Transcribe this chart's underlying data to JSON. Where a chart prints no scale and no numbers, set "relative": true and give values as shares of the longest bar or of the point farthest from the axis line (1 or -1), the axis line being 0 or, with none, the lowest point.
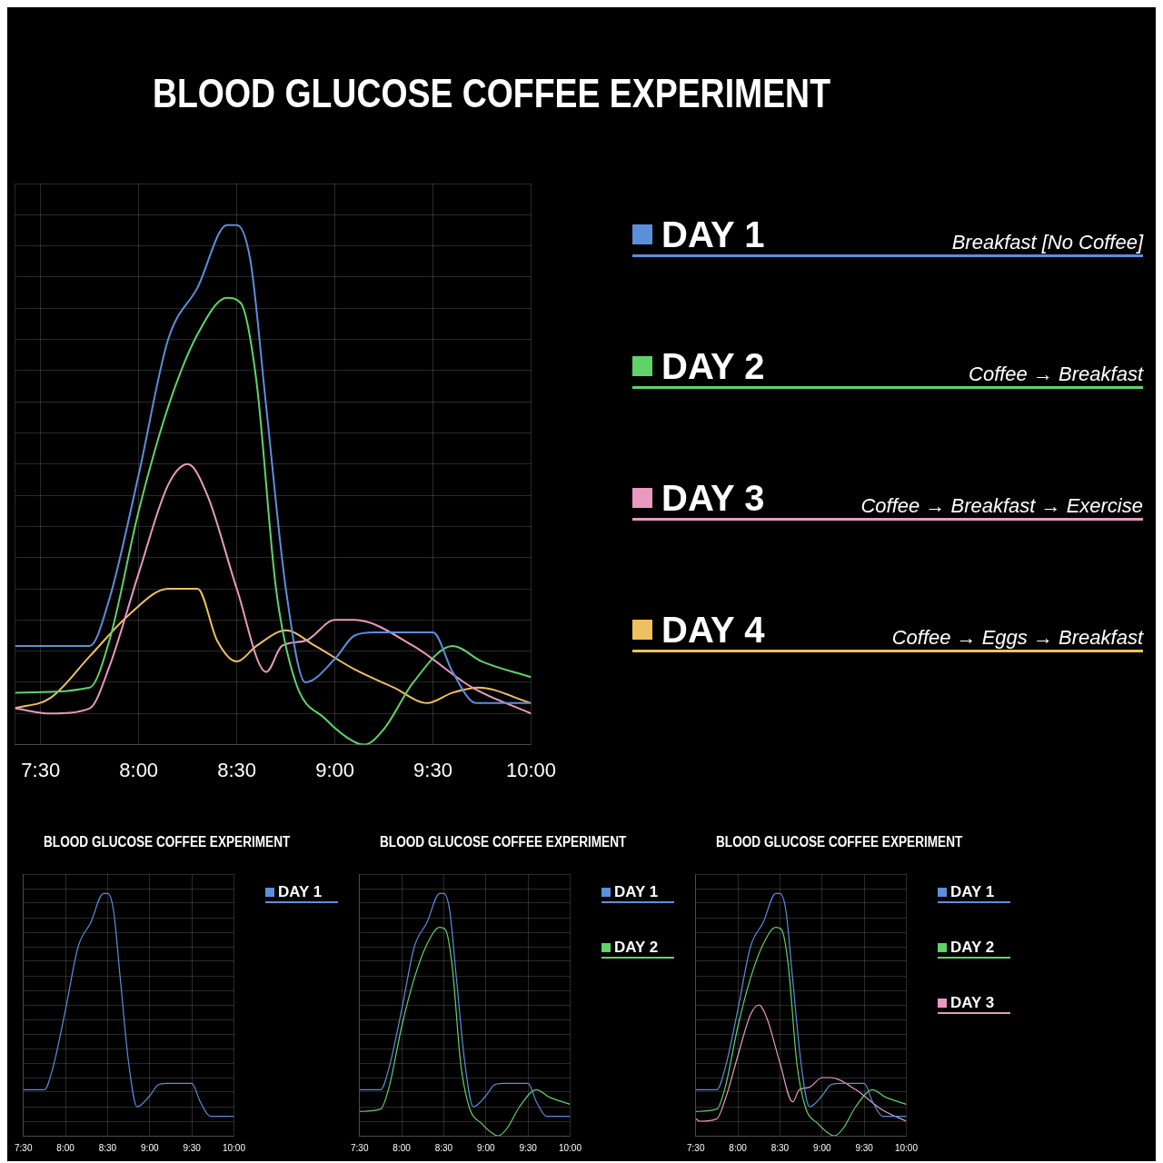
{
  "chart_data": [
    {
      "type": "line",
      "title": "BLOOD GLUCOSE COFFEE EXPERIMENT",
      "relative": true,
      "xlim": [
        7.37,
        10
      ],
      "xticks": [
        {
          "value": 7.5,
          "label": "7:30"
        },
        {
          "value": 8,
          "label": "8:00"
        },
        {
          "value": 8.5,
          "label": "8:30"
        },
        {
          "value": 9,
          "label": "9:00"
        },
        {
          "value": 9.5,
          "label": "9:30"
        },
        {
          "value": 10,
          "label": "10:00"
        }
      ],
      "grid": true,
      "legend": "right",
      "marker": "none",
      "line_style": "solid",
      "annotations": [
        "Breakfast [No Coffee]",
        "Coffee → Breakfast",
        "Coffee → Breakfast → Exercise",
        "Coffee → Eggs → Breakfast"
      ],
      "series": [
        {
          "name": "DAY 1",
          "color": "#5b8fdc",
          "x": [
            7.37,
            7.75,
            7.85,
            8.0,
            8.15,
            8.3,
            8.45,
            8.5,
            8.57,
            8.65,
            8.75,
            8.85,
            9.0,
            9.1,
            9.2,
            9.5,
            9.6,
            9.72,
            10
          ],
          "values": [
            0.19,
            0.19,
            0.28,
            0.52,
            0.78,
            0.88,
            1.0,
            1.0,
            0.93,
            0.65,
            0.3,
            0.12,
            0.165,
            0.21,
            0.216,
            0.216,
            0.14,
            0.08,
            0.08
          ]
        },
        {
          "name": "DAY 2",
          "color": "#5fd36a",
          "x": [
            7.37,
            7.75,
            7.85,
            8.0,
            8.15,
            8.3,
            8.45,
            8.52,
            8.6,
            8.7,
            8.8,
            8.95,
            9.1,
            9.15,
            9.25,
            9.4,
            9.6,
            9.75,
            10
          ],
          "values": [
            0.1,
            0.11,
            0.2,
            0.45,
            0.65,
            0.79,
            0.86,
            0.85,
            0.7,
            0.3,
            0.12,
            0.05,
            0.005,
            0,
            0.03,
            0.12,
            0.19,
            0.16,
            0.13
          ]
        },
        {
          "name": "DAY 3",
          "color": "#e89ac0",
          "x": [
            7.37,
            7.55,
            7.75,
            7.85,
            8.0,
            8.15,
            8.25,
            8.35,
            8.5,
            8.65,
            8.73,
            8.85,
            9.0,
            9.1,
            9.4,
            9.7,
            10
          ],
          "values": [
            0.07,
            0.06,
            0.07,
            0.15,
            0.33,
            0.5,
            0.54,
            0.48,
            0.3,
            0.14,
            0.19,
            0.2,
            0.24,
            0.24,
            0.19,
            0.11,
            0.06
          ]
        },
        {
          "name": "DAY 4",
          "color": "#f0c060",
          "x": [
            7.37,
            7.55,
            7.75,
            7.95,
            8.15,
            8.3,
            8.4,
            8.5,
            8.6,
            8.75,
            8.9,
            9.1,
            9.3,
            9.47,
            9.6,
            9.73,
            10
          ],
          "values": [
            0.07,
            0.09,
            0.17,
            0.25,
            0.3,
            0.3,
            0.2,
            0.16,
            0.19,
            0.22,
            0.19,
            0.145,
            0.11,
            0.08,
            0.1,
            0.11,
            0.08
          ]
        }
      ]
    },
    {
      "type": "line",
      "title": "BLOOD GLUCOSE COFFEE EXPERIMENT",
      "relative": true,
      "xlim": [
        7.5,
        10
      ],
      "xticks": [
        {
          "value": 7.5,
          "label": "7:30"
        },
        {
          "value": 8,
          "label": "8:00"
        },
        {
          "value": 8.5,
          "label": "8:30"
        },
        {
          "value": 9,
          "label": "9:00"
        },
        {
          "value": 9.5,
          "label": "9:30"
        },
        {
          "value": 10,
          "label": "10:00"
        }
      ],
      "grid": true,
      "legend": "right",
      "marker": "none",
      "line_style": "solid",
      "series": [
        {
          "name": "DAY 1",
          "color": "#5b8fdc",
          "x": [
            7.5,
            7.75,
            7.85,
            8.0,
            8.15,
            8.3,
            8.45,
            8.5,
            8.57,
            8.65,
            8.75,
            8.85,
            9.0,
            9.1,
            9.2,
            9.5,
            9.6,
            9.72,
            10
          ],
          "values": [
            0.19,
            0.19,
            0.28,
            0.52,
            0.78,
            0.88,
            1.0,
            1.0,
            0.93,
            0.65,
            0.3,
            0.12,
            0.165,
            0.21,
            0.216,
            0.216,
            0.14,
            0.08,
            0.08
          ]
        }
      ]
    },
    {
      "type": "line",
      "title": "BLOOD GLUCOSE COFFEE EXPERIMENT",
      "relative": true,
      "xlim": [
        7.5,
        10
      ],
      "xticks": [
        {
          "value": 7.5,
          "label": "7:30"
        },
        {
          "value": 8,
          "label": "8:00"
        },
        {
          "value": 8.5,
          "label": "8:30"
        },
        {
          "value": 9,
          "label": "9:00"
        },
        {
          "value": 9.5,
          "label": "9:30"
        },
        {
          "value": 10,
          "label": "10:00"
        }
      ],
      "grid": true,
      "legend": "right",
      "marker": "none",
      "line_style": "solid",
      "series": [
        {
          "name": "DAY 1",
          "color": "#5b8fdc",
          "x": [
            7.5,
            7.75,
            7.85,
            8.0,
            8.15,
            8.3,
            8.45,
            8.5,
            8.57,
            8.65,
            8.75,
            8.85,
            9.0,
            9.1,
            9.2,
            9.5,
            9.6,
            9.72,
            10
          ],
          "values": [
            0.19,
            0.19,
            0.28,
            0.52,
            0.78,
            0.88,
            1.0,
            1.0,
            0.93,
            0.65,
            0.3,
            0.12,
            0.165,
            0.21,
            0.216,
            0.216,
            0.14,
            0.08,
            0.08
          ]
        },
        {
          "name": "DAY 2",
          "color": "#5fd36a",
          "x": [
            7.5,
            7.75,
            7.85,
            8.0,
            8.15,
            8.3,
            8.45,
            8.52,
            8.6,
            8.7,
            8.8,
            8.95,
            9.1,
            9.15,
            9.25,
            9.4,
            9.6,
            9.75,
            10
          ],
          "values": [
            0.1,
            0.11,
            0.2,
            0.45,
            0.65,
            0.79,
            0.86,
            0.85,
            0.7,
            0.3,
            0.12,
            0.05,
            0.005,
            0,
            0.03,
            0.12,
            0.19,
            0.16,
            0.13
          ]
        }
      ]
    },
    {
      "type": "line",
      "title": "BLOOD GLUCOSE COFFEE EXPERIMENT",
      "relative": true,
      "xlim": [
        7.5,
        10
      ],
      "xticks": [
        {
          "value": 7.5,
          "label": "7:30"
        },
        {
          "value": 8,
          "label": "8:00"
        },
        {
          "value": 8.5,
          "label": "8:30"
        },
        {
          "value": 9,
          "label": "9:00"
        },
        {
          "value": 9.5,
          "label": "9:30"
        },
        {
          "value": 10,
          "label": "10:00"
        }
      ],
      "grid": true,
      "legend": "right",
      "marker": "none",
      "line_style": "solid",
      "series": [
        {
          "name": "DAY 1",
          "color": "#5b8fdc",
          "x": [
            7.5,
            7.75,
            7.85,
            8.0,
            8.15,
            8.3,
            8.45,
            8.5,
            8.57,
            8.65,
            8.75,
            8.85,
            9.0,
            9.1,
            9.2,
            9.5,
            9.6,
            9.72,
            10
          ],
          "values": [
            0.19,
            0.19,
            0.28,
            0.52,
            0.78,
            0.88,
            1.0,
            1.0,
            0.93,
            0.65,
            0.3,
            0.12,
            0.165,
            0.21,
            0.216,
            0.216,
            0.14,
            0.08,
            0.08
          ]
        },
        {
          "name": "DAY 2",
          "color": "#5fd36a",
          "x": [
            7.5,
            7.75,
            7.85,
            8.0,
            8.15,
            8.3,
            8.45,
            8.52,
            8.6,
            8.7,
            8.8,
            8.95,
            9.1,
            9.15,
            9.25,
            9.4,
            9.6,
            9.75,
            10
          ],
          "values": [
            0.1,
            0.11,
            0.2,
            0.45,
            0.65,
            0.79,
            0.86,
            0.85,
            0.7,
            0.3,
            0.12,
            0.05,
            0.005,
            0,
            0.03,
            0.12,
            0.19,
            0.16,
            0.13
          ]
        },
        {
          "name": "DAY 3",
          "color": "#e89ac0",
          "x": [
            7.5,
            7.55,
            7.75,
            7.85,
            8.0,
            8.15,
            8.25,
            8.35,
            8.5,
            8.65,
            8.73,
            8.85,
            9.0,
            9.1,
            9.4,
            9.7,
            10
          ],
          "values": [
            0.07,
            0.06,
            0.07,
            0.15,
            0.33,
            0.5,
            0.54,
            0.48,
            0.3,
            0.14,
            0.19,
            0.2,
            0.24,
            0.24,
            0.19,
            0.11,
            0.06
          ]
        }
      ]
    }
  ]
}
